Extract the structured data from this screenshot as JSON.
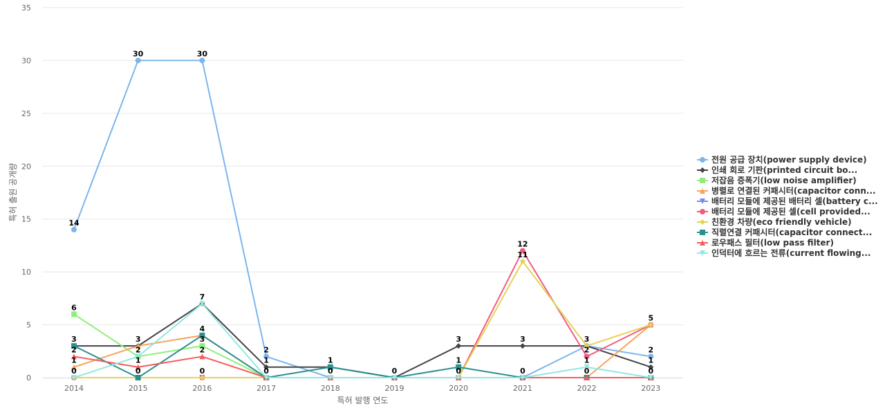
{
  "chart_data": {
    "type": "line",
    "xlabel": "특허 발행 연도",
    "ylabel": "특허 출원 공개량",
    "ylim": [
      0,
      35
    ],
    "y_ticks": [
      0,
      5,
      10,
      15,
      20,
      25,
      30,
      35
    ],
    "grid": true,
    "legend_position": "right",
    "categories": [
      "2014",
      "2015",
      "2016",
      "2017",
      "2018",
      "2019",
      "2020",
      "2021",
      "2022",
      "2023"
    ],
    "series": [
      {
        "name": "전원 공급 장치(power supply device)",
        "color": "#7cb5ec",
        "marker": "circle",
        "values": [
          14,
          30,
          30,
          2,
          0,
          0,
          0,
          0,
          3,
          2
        ]
      },
      {
        "name": "인쇄 회로 기판(printed circuit bo...",
        "color": "#434348",
        "marker": "diamond",
        "values": [
          3,
          3,
          7,
          1,
          1,
          0,
          3,
          3,
          3,
          1
        ]
      },
      {
        "name": "저잡음 증폭기(low noise amplifier)",
        "color": "#90ed7d",
        "marker": "square",
        "values": [
          6,
          2,
          3,
          0,
          0,
          0,
          0,
          0,
          0,
          0
        ]
      },
      {
        "name": "병렬로 연결된 커패시터(capacitor conn...",
        "color": "#f7a35c",
        "marker": "triangle",
        "values": [
          1,
          3,
          4,
          0,
          0,
          0,
          0,
          0,
          0,
          5
        ]
      },
      {
        "name": "배터리 모듈에 제공된 배터리 셀(battery c...",
        "color": "#8085e9",
        "marker": "triangle-down",
        "values": [
          0,
          0,
          0,
          0,
          0,
          0,
          0,
          0,
          0,
          0
        ]
      },
      {
        "name": "배터리 모듈에 제공된 셀(cell provided...",
        "color": "#f15c80",
        "marker": "circle",
        "values": [
          0,
          0,
          0,
          0,
          0,
          0,
          0,
          12,
          2,
          5
        ]
      },
      {
        "name": "친환경 차량(eco friendly vehicle)",
        "color": "#e4d354",
        "marker": "diamond",
        "values": [
          0,
          0,
          0,
          0,
          0,
          0,
          0,
          11,
          3,
          5
        ]
      },
      {
        "name": "직렬연결 커패시터(capacitor connect...",
        "color": "#2b908f",
        "marker": "square",
        "values": [
          3,
          0,
          4,
          0,
          1,
          0,
          1,
          0,
          0,
          0
        ]
      },
      {
        "name": "로우패스 필터(low pass filter)",
        "color": "#f45b5b",
        "marker": "triangle",
        "values": [
          2,
          1,
          2,
          0,
          0,
          0,
          0,
          0,
          0,
          0
        ]
      },
      {
        "name": "인덕터에 흐르는 전류(current flowing...",
        "color": "#91e8e1",
        "marker": "triangle-down",
        "values": [
          0,
          2,
          7,
          0,
          0,
          0,
          0,
          0,
          1,
          0
        ]
      }
    ],
    "data_labels": [
      {
        "x": "2014",
        "y": 14,
        "text": "14"
      },
      {
        "x": "2014",
        "y": 6,
        "text": "6"
      },
      {
        "x": "2014",
        "y": 3,
        "text": "3"
      },
      {
        "x": "2014",
        "y": 2,
        "text": "2"
      },
      {
        "x": "2014",
        "y": 1,
        "text": "1"
      },
      {
        "x": "2014",
        "y": 0,
        "text": "0"
      },
      {
        "x": "2015",
        "y": 30,
        "text": "30"
      },
      {
        "x": "2015",
        "y": 3,
        "text": "3"
      },
      {
        "x": "2015",
        "y": 2,
        "text": "2"
      },
      {
        "x": "2015",
        "y": 1,
        "text": "1"
      },
      {
        "x": "2015",
        "y": 0,
        "text": "0"
      },
      {
        "x": "2016",
        "y": 30,
        "text": "30"
      },
      {
        "x": "2016",
        "y": 7,
        "text": "7"
      },
      {
        "x": "2016",
        "y": 4,
        "text": "4"
      },
      {
        "x": "2016",
        "y": 3,
        "text": "3"
      },
      {
        "x": "2016",
        "y": 2,
        "text": "2"
      },
      {
        "x": "2016",
        "y": 0,
        "text": "0"
      },
      {
        "x": "2017",
        "y": 2,
        "text": "2"
      },
      {
        "x": "2017",
        "y": 1,
        "text": "1"
      },
      {
        "x": "2017",
        "y": 0,
        "text": "0"
      },
      {
        "x": "2018",
        "y": 1,
        "text": "1"
      },
      {
        "x": "2018",
        "y": 0,
        "text": "0"
      },
      {
        "x": "2019",
        "y": 0,
        "text": "0"
      },
      {
        "x": "2020",
        "y": 3,
        "text": "3"
      },
      {
        "x": "2020",
        "y": 1,
        "text": "1"
      },
      {
        "x": "2020",
        "y": 0,
        "text": "0"
      },
      {
        "x": "2021",
        "y": 12,
        "text": "12"
      },
      {
        "x": "2021",
        "y": 11,
        "text": "11"
      },
      {
        "x": "2021",
        "y": 3,
        "text": "3"
      },
      {
        "x": "2021",
        "y": 0,
        "text": "0"
      },
      {
        "x": "2022",
        "y": 3,
        "text": "3"
      },
      {
        "x": "2022",
        "y": 2,
        "text": "2"
      },
      {
        "x": "2022",
        "y": 1,
        "text": "1"
      },
      {
        "x": "2022",
        "y": 0,
        "text": "0"
      },
      {
        "x": "2023",
        "y": 5,
        "text": "5"
      },
      {
        "x": "2023",
        "y": 2,
        "text": "2"
      },
      {
        "x": "2023",
        "y": 1,
        "text": "1"
      },
      {
        "x": "2023",
        "y": 0,
        "text": "0"
      }
    ]
  }
}
